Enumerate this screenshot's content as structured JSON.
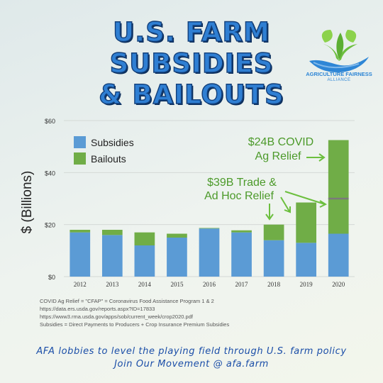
{
  "header": {
    "title_line1": "U.S. FARM",
    "title_line2": "SUBSIDIES",
    "title_line3": "& BAILOUTS"
  },
  "logo": {
    "line1": "AGRICULTURE FAIRNESS",
    "line2": "ALLIANCE",
    "icon": "hand-with-sprout-icon"
  },
  "chart_data": {
    "type": "bar",
    "stacked": true,
    "categories": [
      "2012",
      "2013",
      "2014",
      "2015",
      "2016",
      "2017",
      "2018",
      "2019",
      "2020"
    ],
    "series": [
      {
        "name": "Subsidies",
        "color": "#5b9bd5",
        "values": [
          17,
          16,
          12,
          15,
          18.5,
          17,
          14,
          13,
          16.5
        ]
      },
      {
        "name": "Bailouts",
        "color": "#70ad47",
        "values": [
          1,
          2,
          5,
          1.5,
          0.2,
          0.8,
          6,
          15.5,
          36
        ]
      }
    ],
    "ylim": [
      0,
      60
    ],
    "yticks": [
      "$0",
      "$20",
      "$40",
      "$60"
    ],
    "ytick_values": [
      0,
      20,
      40,
      60
    ],
    "ylabel": "$ (Billions)",
    "xlabel": "",
    "gridlines": true,
    "divider_2020": 30,
    "legend_position": "top-left",
    "annotations": [
      {
        "line1": "$24B COVID",
        "line2": "Ag Relief"
      },
      {
        "line1": "$39B Trade &",
        "line2": "Ad Hoc Relief"
      }
    ]
  },
  "sources": {
    "line1": "COVID Ag Relief = \"CFAP\" = Coronavirus Food Assistance Program 1 & 2",
    "line2": "https://data.ers.usda.gov/reports.aspx?ID=17833",
    "line3": "https://www3.rma.usda.gov/apps/sob/current_week/crop2020.pdf",
    "line4": "Subsidies = Direct Payments to Producers + Crop Insurance Premium Subsidies"
  },
  "footer": {
    "line1": "AFA lobbies to level the playing field through U.S. farm policy",
    "line2": "Join Our Movement @ afa.farm"
  }
}
